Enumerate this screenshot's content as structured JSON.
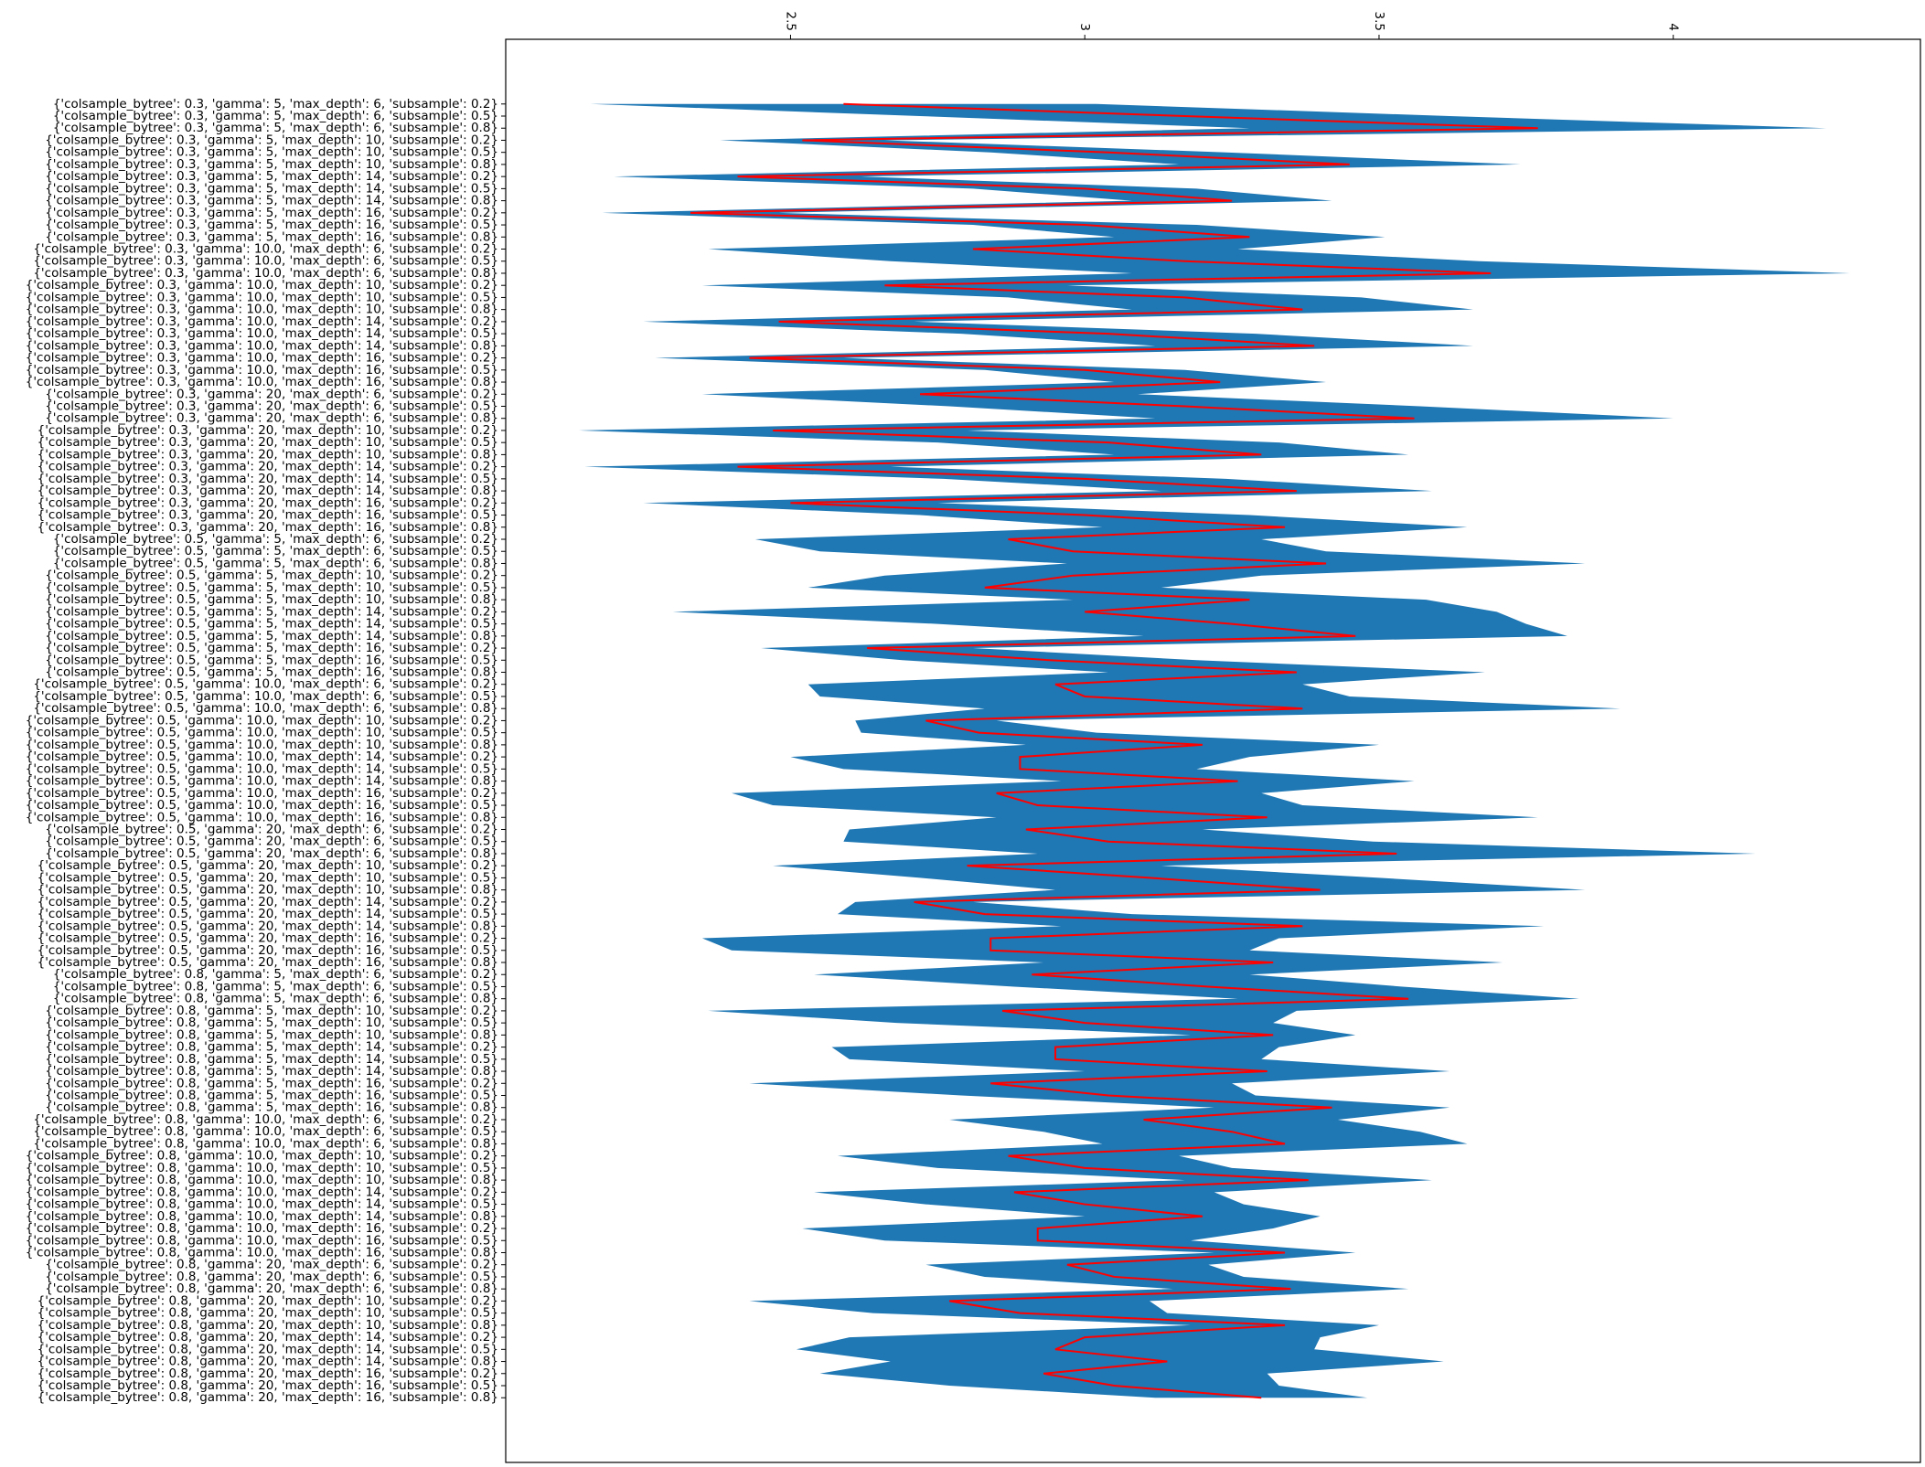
{
  "chart_data": {
    "type": "band_line",
    "xlim": [
      2.016,
      4.42
    ],
    "xticks": [
      2.5,
      3.0,
      3.5,
      4.0
    ],
    "band": {
      "color": "#1f77b4",
      "lower": [
        2.16,
        2.72,
        3.28,
        2.38,
        2.84,
        3.16,
        2.2,
        2.81,
        3.08,
        2.18,
        2.81,
        3.05,
        2.36,
        2.67,
        3.08,
        2.35,
        2.87,
        3.08,
        2.25,
        2.79,
        3.12,
        2.27,
        2.83,
        3.05,
        2.35,
        2.77,
        3.12,
        2.14,
        2.75,
        3.05,
        2.15,
        2.76,
        3.13,
        2.25,
        2.72,
        3.03,
        2.44,
        2.55,
        2.97,
        2.66,
        2.53,
        2.98,
        2.3,
        2.75,
        3.1,
        2.45,
        2.69,
        3.04,
        2.53,
        2.55,
        2.83,
        2.61,
        2.62,
        2.9,
        2.5,
        2.59,
        2.96,
        2.4,
        2.47,
        2.85,
        2.6,
        2.59,
        2.92,
        2.47,
        2.72,
        2.95,
        2.61,
        2.58,
        2.96,
        2.35,
        2.4,
        2.93,
        2.54,
        2.88,
        3.26,
        2.36,
        2.68,
        3.18,
        2.57,
        2.6,
        3.0,
        2.43,
        2.79,
        3.22,
        2.77,
        2.93,
        3.03,
        2.58,
        2.75,
        3.17,
        2.54,
        2.73,
        3.0,
        2.52,
        2.66,
        3.22,
        2.73,
        2.83,
        3.15,
        2.43,
        2.64,
        3.18,
        2.6,
        2.51,
        2.67,
        2.55,
        2.77,
        3.12
      ],
      "upper": [
        3.02,
        3.62,
        4.26,
        2.66,
        3.24,
        3.74,
        2.62,
        3.19,
        3.42,
        2.48,
        3.19,
        3.51,
        3.26,
        3.67,
        4.3,
        2.97,
        3.47,
        3.66,
        2.71,
        3.29,
        3.66,
        2.59,
        3.17,
        3.41,
        3.09,
        3.57,
        4.0,
        2.8,
        3.33,
        3.55,
        2.67,
        3.24,
        3.59,
        2.75,
        3.28,
        3.65,
        3.3,
        3.41,
        3.85,
        3.3,
        3.13,
        3.58,
        3.7,
        3.75,
        3.82,
        2.81,
        3.19,
        3.68,
        3.37,
        3.45,
        3.91,
        2.85,
        3.02,
        3.5,
        3.28,
        3.19,
        3.56,
        3.3,
        3.37,
        3.77,
        3.2,
        3.49,
        4.14,
        3.13,
        3.5,
        3.85,
        2.81,
        3.08,
        3.78,
        3.33,
        3.28,
        3.71,
        3.28,
        3.54,
        3.84,
        3.36,
        3.32,
        3.46,
        3.33,
        3.3,
        3.62,
        3.25,
        3.29,
        3.62,
        3.43,
        3.57,
        3.65,
        3.16,
        3.25,
        3.59,
        3.22,
        3.27,
        3.4,
        3.32,
        3.18,
        3.46,
        3.21,
        3.27,
        3.55,
        3.11,
        3.14,
        3.5,
        3.4,
        3.39,
        3.61,
        3.31,
        3.33,
        3.48
      ]
    },
    "series": [
      {
        "color": "#ff0000",
        "values": [
          2.59,
          3.17,
          3.77,
          2.52,
          3.04,
          3.45,
          2.41,
          3.0,
          3.25,
          2.33,
          3.0,
          3.28,
          2.81,
          3.17,
          3.69,
          2.66,
          3.17,
          3.37,
          2.48,
          3.04,
          3.39,
          2.43,
          3.0,
          3.23,
          2.72,
          3.17,
          3.56,
          2.47,
          3.04,
          3.3,
          2.41,
          3.0,
          3.36,
          2.5,
          3.0,
          3.34,
          2.87,
          2.98,
          3.41,
          2.98,
          2.83,
          3.28,
          3.0,
          3.25,
          3.46,
          2.63,
          2.94,
          3.36,
          2.95,
          3.0,
          3.37,
          2.73,
          2.82,
          3.2,
          2.89,
          2.89,
          3.26,
          2.85,
          2.92,
          3.31,
          2.9,
          3.04,
          3.53,
          2.8,
          3.11,
          3.4,
          2.71,
          2.83,
          3.37,
          2.84,
          2.84,
          3.32,
          2.91,
          3.21,
          3.55,
          2.86,
          3.0,
          3.32,
          2.95,
          2.95,
          3.31,
          2.84,
          3.04,
          3.42,
          3.1,
          3.25,
          3.34,
          2.87,
          3.0,
          3.38,
          2.88,
          3.0,
          3.2,
          2.92,
          2.92,
          3.34,
          2.97,
          3.05,
          3.35,
          2.77,
          2.89,
          3.34,
          3.0,
          2.95,
          3.14,
          2.93,
          3.05,
          3.3
        ]
      }
    ],
    "categories": [
      "{'colsample_bytree': 0.3, 'gamma': 5, 'max_depth': 6, 'subsample': 0.2}",
      "{'colsample_bytree': 0.3, 'gamma': 5, 'max_depth': 6, 'subsample': 0.5}",
      "{'colsample_bytree': 0.3, 'gamma': 5, 'max_depth': 6, 'subsample': 0.8}",
      "{'colsample_bytree': 0.3, 'gamma': 5, 'max_depth': 10, 'subsample': 0.2}",
      "{'colsample_bytree': 0.3, 'gamma': 5, 'max_depth': 10, 'subsample': 0.5}",
      "{'colsample_bytree': 0.3, 'gamma': 5, 'max_depth': 10, 'subsample': 0.8}",
      "{'colsample_bytree': 0.3, 'gamma': 5, 'max_depth': 14, 'subsample': 0.2}",
      "{'colsample_bytree': 0.3, 'gamma': 5, 'max_depth': 14, 'subsample': 0.5}",
      "{'colsample_bytree': 0.3, 'gamma': 5, 'max_depth': 14, 'subsample': 0.8}",
      "{'colsample_bytree': 0.3, 'gamma': 5, 'max_depth': 16, 'subsample': 0.2}",
      "{'colsample_bytree': 0.3, 'gamma': 5, 'max_depth': 16, 'subsample': 0.5}",
      "{'colsample_bytree': 0.3, 'gamma': 5, 'max_depth': 16, 'subsample': 0.8}",
      "{'colsample_bytree': 0.3, 'gamma': 10.0, 'max_depth': 6, 'subsample': 0.2}",
      "{'colsample_bytree': 0.3, 'gamma': 10.0, 'max_depth': 6, 'subsample': 0.5}",
      "{'colsample_bytree': 0.3, 'gamma': 10.0, 'max_depth': 6, 'subsample': 0.8}",
      "{'colsample_bytree': 0.3, 'gamma': 10.0, 'max_depth': 10, 'subsample': 0.2}",
      "{'colsample_bytree': 0.3, 'gamma': 10.0, 'max_depth': 10, 'subsample': 0.5}",
      "{'colsample_bytree': 0.3, 'gamma': 10.0, 'max_depth': 10, 'subsample': 0.8}",
      "{'colsample_bytree': 0.3, 'gamma': 10.0, 'max_depth': 14, 'subsample': 0.2}",
      "{'colsample_bytree': 0.3, 'gamma': 10.0, 'max_depth': 14, 'subsample': 0.5}",
      "{'colsample_bytree': 0.3, 'gamma': 10.0, 'max_depth': 14, 'subsample': 0.8}",
      "{'colsample_bytree': 0.3, 'gamma': 10.0, 'max_depth': 16, 'subsample': 0.2}",
      "{'colsample_bytree': 0.3, 'gamma': 10.0, 'max_depth': 16, 'subsample': 0.5}",
      "{'colsample_bytree': 0.3, 'gamma': 10.0, 'max_depth': 16, 'subsample': 0.8}",
      "{'colsample_bytree': 0.3, 'gamma': 20, 'max_depth': 6, 'subsample': 0.2}",
      "{'colsample_bytree': 0.3, 'gamma': 20, 'max_depth': 6, 'subsample': 0.5}",
      "{'colsample_bytree': 0.3, 'gamma': 20, 'max_depth': 6, 'subsample': 0.8}",
      "{'colsample_bytree': 0.3, 'gamma': 20, 'max_depth': 10, 'subsample': 0.2}",
      "{'colsample_bytree': 0.3, 'gamma': 20, 'max_depth': 10, 'subsample': 0.5}",
      "{'colsample_bytree': 0.3, 'gamma': 20, 'max_depth': 10, 'subsample': 0.8}",
      "{'colsample_bytree': 0.3, 'gamma': 20, 'max_depth': 14, 'subsample': 0.2}",
      "{'colsample_bytree': 0.3, 'gamma': 20, 'max_depth': 14, 'subsample': 0.5}",
      "{'colsample_bytree': 0.3, 'gamma': 20, 'max_depth': 14, 'subsample': 0.8}",
      "{'colsample_bytree': 0.3, 'gamma': 20, 'max_depth': 16, 'subsample': 0.2}",
      "{'colsample_bytree': 0.3, 'gamma': 20, 'max_depth': 16, 'subsample': 0.5}",
      "{'colsample_bytree': 0.3, 'gamma': 20, 'max_depth': 16, 'subsample': 0.8}",
      "{'colsample_bytree': 0.5, 'gamma': 5, 'max_depth': 6, 'subsample': 0.2}",
      "{'colsample_bytree': 0.5, 'gamma': 5, 'max_depth': 6, 'subsample': 0.5}",
      "{'colsample_bytree': 0.5, 'gamma': 5, 'max_depth': 6, 'subsample': 0.8}",
      "{'colsample_bytree': 0.5, 'gamma': 5, 'max_depth': 10, 'subsample': 0.2}",
      "{'colsample_bytree': 0.5, 'gamma': 5, 'max_depth': 10, 'subsample': 0.5}",
      "{'colsample_bytree': 0.5, 'gamma': 5, 'max_depth': 10, 'subsample': 0.8}",
      "{'colsample_bytree': 0.5, 'gamma': 5, 'max_depth': 14, 'subsample': 0.2}",
      "{'colsample_bytree': 0.5, 'gamma': 5, 'max_depth': 14, 'subsample': 0.5}",
      "{'colsample_bytree': 0.5, 'gamma': 5, 'max_depth': 14, 'subsample': 0.8}",
      "{'colsample_bytree': 0.5, 'gamma': 5, 'max_depth': 16, 'subsample': 0.2}",
      "{'colsample_bytree': 0.5, 'gamma': 5, 'max_depth': 16, 'subsample': 0.5}",
      "{'colsample_bytree': 0.5, 'gamma': 5, 'max_depth': 16, 'subsample': 0.8}",
      "{'colsample_bytree': 0.5, 'gamma': 10.0, 'max_depth': 6, 'subsample': 0.2}",
      "{'colsample_bytree': 0.5, 'gamma': 10.0, 'max_depth': 6, 'subsample': 0.5}",
      "{'colsample_bytree': 0.5, 'gamma': 10.0, 'max_depth': 6, 'subsample': 0.8}",
      "{'colsample_bytree': 0.5, 'gamma': 10.0, 'max_depth': 10, 'subsample': 0.2}",
      "{'colsample_bytree': 0.5, 'gamma': 10.0, 'max_depth': 10, 'subsample': 0.5}",
      "{'colsample_bytree': 0.5, 'gamma': 10.0, 'max_depth': 10, 'subsample': 0.8}",
      "{'colsample_bytree': 0.5, 'gamma': 10.0, 'max_depth': 14, 'subsample': 0.2}",
      "{'colsample_bytree': 0.5, 'gamma': 10.0, 'max_depth': 14, 'subsample': 0.5}",
      "{'colsample_bytree': 0.5, 'gamma': 10.0, 'max_depth': 14, 'subsample': 0.8}",
      "{'colsample_bytree': 0.5, 'gamma': 10.0, 'max_depth': 16, 'subsample': 0.2}",
      "{'colsample_bytree': 0.5, 'gamma': 10.0, 'max_depth': 16, 'subsample': 0.5}",
      "{'colsample_bytree': 0.5, 'gamma': 10.0, 'max_depth': 16, 'subsample': 0.8}",
      "{'colsample_bytree': 0.5, 'gamma': 20, 'max_depth': 6, 'subsample': 0.2}",
      "{'colsample_bytree': 0.5, 'gamma': 20, 'max_depth': 6, 'subsample': 0.5}",
      "{'colsample_bytree': 0.5, 'gamma': 20, 'max_depth': 6, 'subsample': 0.8}",
      "{'colsample_bytree': 0.5, 'gamma': 20, 'max_depth': 10, 'subsample': 0.2}",
      "{'colsample_bytree': 0.5, 'gamma': 20, 'max_depth': 10, 'subsample': 0.5}",
      "{'colsample_bytree': 0.5, 'gamma': 20, 'max_depth': 10, 'subsample': 0.8}",
      "{'colsample_bytree': 0.5, 'gamma': 20, 'max_depth': 14, 'subsample': 0.2}",
      "{'colsample_bytree': 0.5, 'gamma': 20, 'max_depth': 14, 'subsample': 0.5}",
      "{'colsample_bytree': 0.5, 'gamma': 20, 'max_depth': 14, 'subsample': 0.8}",
      "{'colsample_bytree': 0.5, 'gamma': 20, 'max_depth': 16, 'subsample': 0.2}",
      "{'colsample_bytree': 0.5, 'gamma': 20, 'max_depth': 16, 'subsample': 0.5}",
      "{'colsample_bytree': 0.5, 'gamma': 20, 'max_depth': 16, 'subsample': 0.8}",
      "{'colsample_bytree': 0.8, 'gamma': 5, 'max_depth': 6, 'subsample': 0.2}",
      "{'colsample_bytree': 0.8, 'gamma': 5, 'max_depth': 6, 'subsample': 0.5}",
      "{'colsample_bytree': 0.8, 'gamma': 5, 'max_depth': 6, 'subsample': 0.8}",
      "{'colsample_bytree': 0.8, 'gamma': 5, 'max_depth': 10, 'subsample': 0.2}",
      "{'colsample_bytree': 0.8, 'gamma': 5, 'max_depth': 10, 'subsample': 0.5}",
      "{'colsample_bytree': 0.8, 'gamma': 5, 'max_depth': 10, 'subsample': 0.8}",
      "{'colsample_bytree': 0.8, 'gamma': 5, 'max_depth': 14, 'subsample': 0.2}",
      "{'colsample_bytree': 0.8, 'gamma': 5, 'max_depth': 14, 'subsample': 0.5}",
      "{'colsample_bytree': 0.8, 'gamma': 5, 'max_depth': 14, 'subsample': 0.8}",
      "{'colsample_bytree': 0.8, 'gamma': 5, 'max_depth': 16, 'subsample': 0.2}",
      "{'colsample_bytree': 0.8, 'gamma': 5, 'max_depth': 16, 'subsample': 0.5}",
      "{'colsample_bytree': 0.8, 'gamma': 5, 'max_depth': 16, 'subsample': 0.8}",
      "{'colsample_bytree': 0.8, 'gamma': 10.0, 'max_depth': 6, 'subsample': 0.2}",
      "{'colsample_bytree': 0.8, 'gamma': 10.0, 'max_depth': 6, 'subsample': 0.5}",
      "{'colsample_bytree': 0.8, 'gamma': 10.0, 'max_depth': 6, 'subsample': 0.8}",
      "{'colsample_bytree': 0.8, 'gamma': 10.0, 'max_depth': 10, 'subsample': 0.2}",
      "{'colsample_bytree': 0.8, 'gamma': 10.0, 'max_depth': 10, 'subsample': 0.5}",
      "{'colsample_bytree': 0.8, 'gamma': 10.0, 'max_depth': 10, 'subsample': 0.8}",
      "{'colsample_bytree': 0.8, 'gamma': 10.0, 'max_depth': 14, 'subsample': 0.2}",
      "{'colsample_bytree': 0.8, 'gamma': 10.0, 'max_depth': 14, 'subsample': 0.5}",
      "{'colsample_bytree': 0.8, 'gamma': 10.0, 'max_depth': 14, 'subsample': 0.8}",
      "{'colsample_bytree': 0.8, 'gamma': 10.0, 'max_depth': 16, 'subsample': 0.2}",
      "{'colsample_bytree': 0.8, 'gamma': 10.0, 'max_depth': 16, 'subsample': 0.5}",
      "{'colsample_bytree': 0.8, 'gamma': 10.0, 'max_depth': 16, 'subsample': 0.8}",
      "{'colsample_bytree': 0.8, 'gamma': 20, 'max_depth': 6, 'subsample': 0.2}",
      "{'colsample_bytree': 0.8, 'gamma': 20, 'max_depth': 6, 'subsample': 0.5}",
      "{'colsample_bytree': 0.8, 'gamma': 20, 'max_depth': 6, 'subsample': 0.8}",
      "{'colsample_bytree': 0.8, 'gamma': 20, 'max_depth': 10, 'subsample': 0.2}",
      "{'colsample_bytree': 0.8, 'gamma': 20, 'max_depth': 10, 'subsample': 0.5}",
      "{'colsample_bytree': 0.8, 'gamma': 20, 'max_depth': 10, 'subsample': 0.8}",
      "{'colsample_bytree': 0.8, 'gamma': 20, 'max_depth': 14, 'subsample': 0.2}",
      "{'colsample_bytree': 0.8, 'gamma': 20, 'max_depth': 14, 'subsample': 0.5}",
      "{'colsample_bytree': 0.8, 'gamma': 20, 'max_depth': 14, 'subsample': 0.8}",
      "{'colsample_bytree': 0.8, 'gamma': 20, 'max_depth': 16, 'subsample': 0.2}",
      "{'colsample_bytree': 0.8, 'gamma': 20, 'max_depth': 16, 'subsample': 0.5}",
      "{'colsample_bytree': 0.8, 'gamma': 20, 'max_depth': 16, 'subsample': 0.8}"
    ]
  }
}
